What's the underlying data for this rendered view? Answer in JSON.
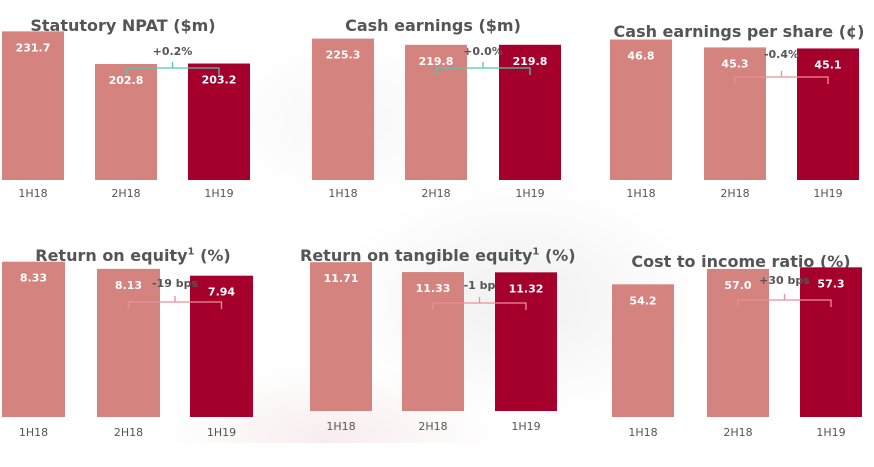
{
  "colors": {
    "prior_bar": "#d5837f",
    "current_bar": "#a5002c",
    "teal_bracket": "#4fc6b0",
    "pink_bracket": "#ee8f96",
    "text": "#555555"
  },
  "chart_data": [
    {
      "type": "bar",
      "title": "Statutory NPAT ($m)",
      "footnote": "",
      "categories": [
        "1H18",
        "2H18",
        "1H19"
      ],
      "values": [
        231.7,
        202.8,
        203.2
      ],
      "value_labels": [
        "231.7",
        "202.8",
        "203.2"
      ],
      "change_label": "+0.2%",
      "bracket_color": "teal"
    },
    {
      "type": "bar",
      "title": "Cash earnings ($m)",
      "footnote": "",
      "categories": [
        "1H18",
        "2H18",
        "1H19"
      ],
      "values": [
        225.3,
        219.8,
        219.8
      ],
      "value_labels": [
        "225.3",
        "219.8",
        "219.8"
      ],
      "change_label": "+0.0%",
      "bracket_color": "teal"
    },
    {
      "type": "bar",
      "title": "Cash earnings per share (¢)",
      "footnote": "",
      "categories": [
        "1H18",
        "2H18",
        "1H19"
      ],
      "values": [
        46.8,
        45.3,
        45.1
      ],
      "value_labels": [
        "46.8",
        "45.3",
        "45.1"
      ],
      "change_label": "-0.4%",
      "bracket_color": "pink"
    },
    {
      "type": "bar",
      "title": "Return on equity",
      "footnote": "1",
      "title_suffix": " (%)",
      "categories": [
        "1H18",
        "2H18",
        "1H19"
      ],
      "values": [
        8.33,
        8.13,
        7.94
      ],
      "value_labels": [
        "8.33",
        "8.13",
        "7.94"
      ],
      "change_label": "-19 bps",
      "bracket_color": "pink"
    },
    {
      "type": "bar",
      "title": "Return on tangible equity",
      "footnote": "1",
      "title_suffix": " (%)",
      "categories": [
        "1H18",
        "2H18",
        "1H19"
      ],
      "values": [
        11.71,
        11.33,
        11.32
      ],
      "value_labels": [
        "11.71",
        "11.33",
        "11.32"
      ],
      "change_label": "-1 bp",
      "bracket_color": "pink"
    },
    {
      "type": "bar",
      "title": "Cost to income ratio (%)",
      "footnote": "",
      "categories": [
        "1H18",
        "2H18",
        "1H19"
      ],
      "values": [
        54.2,
        57.0,
        57.3
      ],
      "value_labels": [
        "54.2",
        "57.0",
        "57.3"
      ],
      "change_label": "+30 bps",
      "bracket_color": "pink"
    }
  ]
}
